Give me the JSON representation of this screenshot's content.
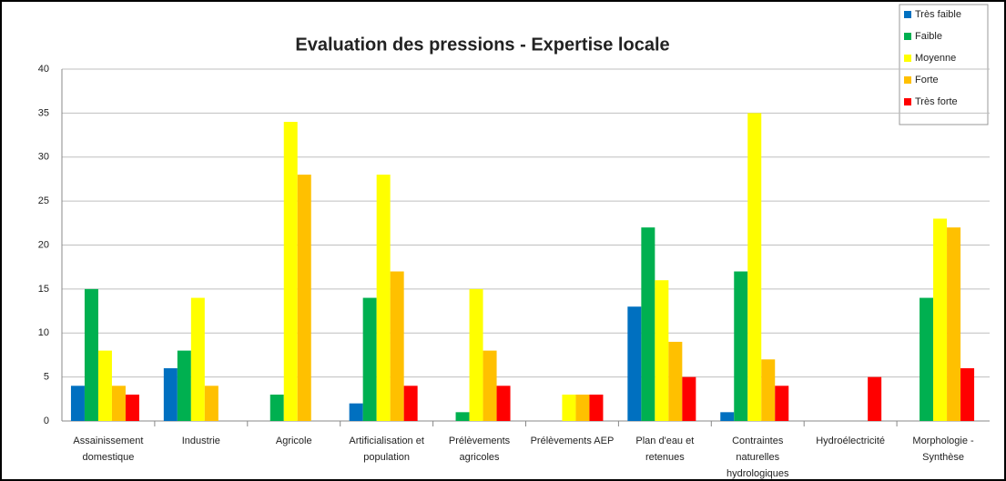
{
  "chart_data": {
    "type": "bar",
    "title": "Evaluation des pressions - Expertise locale",
    "categories": [
      "Assainissement domestique",
      "Industrie",
      "Agricole",
      "Artificialisation et population",
      "Prélèvements agricoles",
      "Prélèvements AEP",
      "Plan d'eau et retenues",
      "Contraintes naturelles hydrologiques",
      "Hydroélectricité",
      "Morphologie - Synthèse"
    ],
    "series": [
      {
        "name": "Très faible",
        "color": "#0070c0",
        "values": [
          4,
          6,
          null,
          2,
          null,
          null,
          13,
          1,
          null,
          null
        ]
      },
      {
        "name": "Faible",
        "color": "#00b050",
        "values": [
          15,
          8,
          3,
          14,
          1,
          null,
          22,
          17,
          null,
          14
        ]
      },
      {
        "name": "Moyenne",
        "color": "#ffff00",
        "values": [
          8,
          14,
          34,
          28,
          15,
          3,
          16,
          35,
          null,
          23
        ]
      },
      {
        "name": "Forte",
        "color": "#ffc000",
        "values": [
          4,
          4,
          28,
          17,
          8,
          3,
          9,
          7,
          null,
          22
        ]
      },
      {
        "name": "Très forte",
        "color": "#ff0000",
        "values": [
          3,
          null,
          null,
          4,
          4,
          3,
          5,
          4,
          5,
          6
        ]
      }
    ],
    "ylim": [
      0,
      40
    ],
    "yticks": [
      0,
      5,
      10,
      15,
      20,
      25,
      30,
      35,
      40
    ],
    "grid": true,
    "legend": "top-right"
  }
}
